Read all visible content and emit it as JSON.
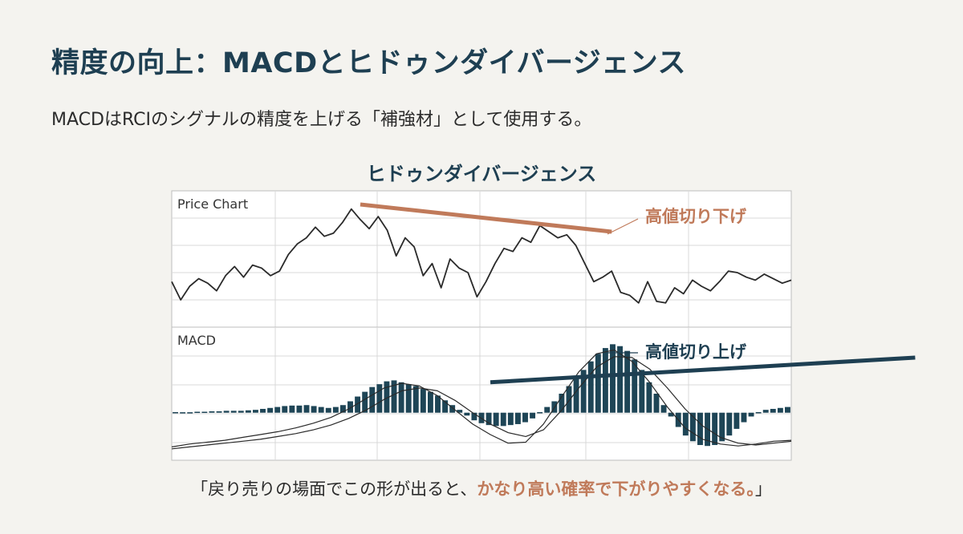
{
  "page": {
    "title": "精度の向上：MACDとヒドゥンダイバージェンス",
    "subtitle": "MACDはRCIのシグナルの精度を上げる「補強材」として使用する。",
    "note_prefix": "「戻り売りの場面でこの形が出ると、",
    "note_highlight": "かなり高い確率で下がりやすくなる。",
    "note_suffix": "」"
  },
  "colors": {
    "navy": "#1e3f52",
    "accent": "#c07a5a",
    "line": "#2a2a2a",
    "grid": "#d9d9d9",
    "histogram": "#1e4556"
  },
  "chart_data": {
    "type": "line",
    "title": "ヒドゥンダイバージェンス",
    "panels": [
      {
        "id": "price",
        "label": "Price Chart",
        "series": [
          {
            "values": [
              4.0,
              2.8,
              3.7,
              4.2,
              3.9,
              3.4,
              4.4,
              5.0,
              4.3,
              5.1,
              4.9,
              4.4,
              4.7,
              5.8,
              6.5,
              6.9,
              7.6,
              7.0,
              7.2,
              7.9,
              8.8,
              8.1,
              7.5,
              8.3,
              7.4,
              5.7,
              6.9,
              6.3,
              4.4,
              5.2,
              3.6,
              5.5,
              4.9,
              4.6,
              3.0,
              4.0,
              5.2,
              6.2,
              6.0,
              6.9,
              6.6,
              7.7,
              7.3,
              6.9,
              7.1,
              6.4,
              5.2,
              4.0,
              4.3,
              4.7,
              3.3,
              3.1,
              2.6,
              4.0,
              2.7,
              2.6,
              3.6,
              3.2,
              4.1,
              3.7,
              3.4,
              4.0,
              4.7,
              4.6,
              4.3,
              4.1,
              4.5,
              4.2,
              3.9,
              4.1
            ]
          }
        ],
        "ylim": [
          1,
          10
        ],
        "trendline": {
          "from": {
            "x": 21,
            "y": 9.1
          },
          "to": {
            "x": 49,
            "y": 7.3
          }
        },
        "annotation": "高値切り下げ"
      },
      {
        "id": "macd",
        "label": "MACD",
        "histogram": [
          0.0,
          0.05,
          0.05,
          0.1,
          0.1,
          0.15,
          0.15,
          0.2,
          0.2,
          0.2,
          0.25,
          0.3,
          0.4,
          0.5,
          0.6,
          0.7,
          0.75,
          0.75,
          0.8,
          0.7,
          0.6,
          0.5,
          0.6,
          0.8,
          1.2,
          1.7,
          2.2,
          2.7,
          3.0,
          3.3,
          3.4,
          3.2,
          3.0,
          2.8,
          2.5,
          2.2,
          1.8,
          1.3,
          0.8,
          0.3,
          -0.3,
          -0.8,
          -1.1,
          -1.3,
          -1.4,
          -1.4,
          -1.3,
          -1.2,
          -1.0,
          -0.6,
          0.0,
          0.6,
          1.2,
          2.0,
          2.8,
          3.6,
          4.5,
          5.4,
          6.2,
          6.8,
          7.2,
          7.0,
          6.5,
          5.6,
          4.5,
          3.2,
          2.0,
          0.8,
          -0.4,
          -1.5,
          -2.4,
          -3.0,
          -3.4,
          -3.5,
          -3.4,
          -3.0,
          -2.4,
          -1.7,
          -1.0,
          -0.4,
          0.0,
          0.3,
          0.4,
          0.5,
          0.6
        ],
        "series": [
          {
            "values": [
              -3.6,
              -3.3,
              -3.1,
              -2.9,
              -2.6,
              -2.3,
              -2.0,
              -1.6,
              -1.1,
              -0.5,
              0.4,
              1.5,
              2.6,
              3.1,
              2.8,
              1.8,
              0.3,
              -1.2,
              -2.3,
              -3.2,
              -3.1,
              -1.2,
              1.6,
              4.3,
              6.2,
              6.6,
              5.4,
              3.2,
              0.6,
              -1.6,
              -2.8,
              -3.3,
              -3.5,
              -3.3,
              -3.0,
              -2.9
            ]
          },
          {
            "values": [
              -3.8,
              -3.6,
              -3.4,
              -3.2,
              -3.0,
              -2.8,
              -2.5,
              -2.2,
              -1.8,
              -1.3,
              -0.6,
              0.3,
              1.4,
              2.3,
              2.6,
              2.3,
              1.3,
              0.0,
              -1.2,
              -2.1,
              -2.5,
              -1.8,
              0.2,
              2.6,
              4.8,
              5.9,
              5.8,
              4.6,
              2.6,
              0.4,
              -1.4,
              -2.6,
              -3.2,
              -3.4,
              -3.2,
              -3.0
            ]
          }
        ],
        "ylim": [
          -5,
          9
        ],
        "trendline": {
          "from": {
            "x": 18,
            "y": 3.2
          },
          "to": {
            "x": 42,
            "y": 5.8
          }
        },
        "annotation": "高値切り上げ"
      }
    ],
    "grid": true
  }
}
